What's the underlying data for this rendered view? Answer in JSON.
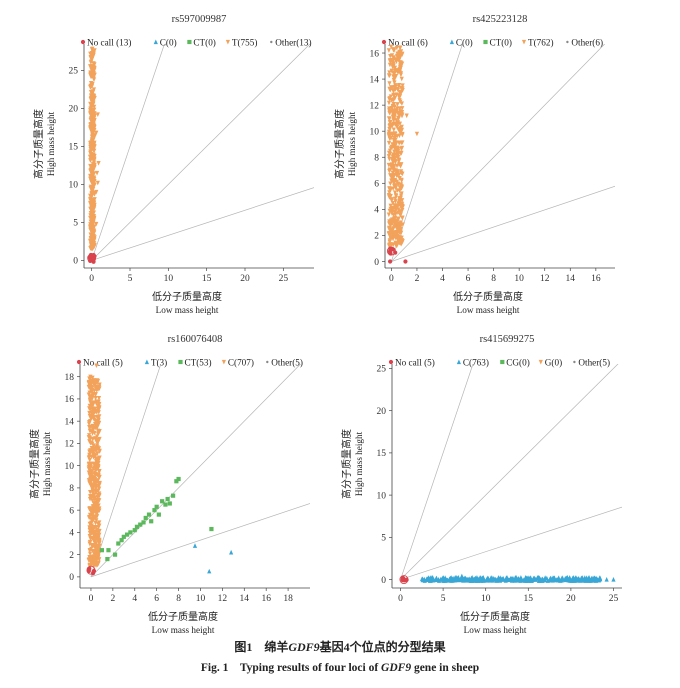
{
  "caption": {
    "zh_prefix": "图1　绵羊",
    "gene": "GDF9",
    "zh_suffix": "基因4个位点的分型结果",
    "en_prefix": "Fig. 1　Typing results of four loci of ",
    "en_suffix": " gene in sheep"
  },
  "colors": {
    "nocall": "#d9434c",
    "blue": "#39a7d6",
    "green": "#5cb85c",
    "orange": "#f2a25a",
    "guide": "#b5b5b5",
    "axis": "#444444"
  },
  "chart_data": [
    {
      "type": "scatter",
      "title": "rs597009987",
      "xlabel_zh": "低分子质量高度",
      "xlabel_en": "Low mass height",
      "ylabel_zh": "高分子质量高度",
      "ylabel_en": "High mass height",
      "xlim": [
        -1,
        29
      ],
      "ylim": [
        -1,
        29
      ],
      "xticks": [
        0,
        5,
        10,
        15,
        20,
        25
      ],
      "yticks": [
        0,
        5,
        10,
        15,
        20,
        25
      ],
      "guide_slopes": [
        3,
        1,
        0.33
      ],
      "legend": [
        {
          "label": "No call (13)",
          "marker": "circle",
          "color": "#d9434c"
        },
        {
          "label": "C(0)",
          "marker": "triangle",
          "color": "#39a7d6"
        },
        {
          "label": "CT(0)",
          "marker": "square",
          "color": "#5cb85c"
        },
        {
          "label": "T(755)",
          "marker": "triangle-down",
          "color": "#f2a25a"
        },
        {
          "label": "Other(13)",
          "marker": "dot",
          "color": "#888888"
        }
      ],
      "clusters": [
        {
          "name": "T",
          "marker": "triangle-down",
          "color": "#f2a25a",
          "n": 420,
          "x": [
            -0.2,
            0.4
          ],
          "y": [
            1.5,
            28
          ]
        },
        {
          "name": "No call",
          "marker": "circle",
          "color": "#d9434c",
          "n": 13,
          "x": [
            -0.3,
            0.4
          ],
          "y": [
            -0.2,
            0.8
          ]
        }
      ],
      "points": [
        {
          "x": 0.8,
          "y": 19.2,
          "marker": "triangle-down",
          "color": "#f2a25a"
        },
        {
          "x": 0.6,
          "y": 16.8,
          "marker": "triangle-down",
          "color": "#f2a25a"
        },
        {
          "x": 0.9,
          "y": 12.8,
          "marker": "triangle-down",
          "color": "#f2a25a"
        },
        {
          "x": 0.7,
          "y": 11.5,
          "marker": "triangle-down",
          "color": "#f2a25a"
        },
        {
          "x": 0.8,
          "y": 10.2,
          "marker": "triangle-down",
          "color": "#f2a25a"
        },
        {
          "x": 0.6,
          "y": 9.0,
          "marker": "triangle-down",
          "color": "#f2a25a"
        },
        {
          "x": 0.6,
          "y": 4.8,
          "marker": "triangle-down",
          "color": "#f2a25a"
        }
      ],
      "highlight": {
        "x": 0,
        "y": 0.3
      }
    },
    {
      "type": "scatter",
      "title": "rs425223128",
      "xlabel_zh": "低分子质量高度",
      "xlabel_en": "Low mass height",
      "ylabel_zh": "高分子质量高度",
      "ylabel_en": "High mass height",
      "xlim": [
        -0.5,
        17.5
      ],
      "ylim": [
        -0.5,
        17
      ],
      "xticks": [
        0,
        2,
        4,
        6,
        8,
        10,
        12,
        14,
        16
      ],
      "yticks": [
        0,
        2,
        4,
        6,
        8,
        10,
        12,
        14,
        16
      ],
      "guide_slopes": [
        3,
        1,
        0.33
      ],
      "legend": [
        {
          "label": "No call (6)",
          "marker": "circle",
          "color": "#d9434c"
        },
        {
          "label": "C(0)",
          "marker": "triangle",
          "color": "#39a7d6"
        },
        {
          "label": "CT(0)",
          "marker": "square",
          "color": "#5cb85c"
        },
        {
          "label": "T(762)",
          "marker": "triangle-down",
          "color": "#f2a25a"
        },
        {
          "label": "Other(6)",
          "marker": "dot",
          "color": "#888888"
        }
      ],
      "clusters": [
        {
          "name": "T",
          "marker": "triangle-down",
          "color": "#f2a25a",
          "n": 520,
          "x": [
            -0.2,
            0.9
          ],
          "y": [
            1.2,
            16.5
          ]
        },
        {
          "name": "No call",
          "marker": "circle",
          "color": "#d9434c",
          "n": 6,
          "x": [
            -0.2,
            0.3
          ],
          "y": [
            0.5,
            1.0
          ]
        }
      ],
      "points": [
        {
          "x": 2.0,
          "y": 9.8,
          "marker": "triangle-down",
          "color": "#f2a25a"
        },
        {
          "x": 1.2,
          "y": 11.2,
          "marker": "triangle-down",
          "color": "#f2a25a"
        },
        {
          "x": 1.1,
          "y": 0.0,
          "marker": "circle",
          "color": "#d9434c"
        },
        {
          "x": -0.1,
          "y": 0.0,
          "marker": "circle",
          "color": "#d9434c"
        }
      ],
      "highlight": {
        "x": 0,
        "y": 0.8
      }
    },
    {
      "type": "scatter",
      "title": "rs160076408",
      "xlabel_zh": "低分子质量高度",
      "xlabel_en": "Low mass height",
      "ylabel_zh": "高分子质量高度",
      "ylabel_en": "High mass height",
      "xlim": [
        -1,
        20
      ],
      "ylim": [
        -1,
        19.5
      ],
      "xticks": [
        0,
        2,
        4,
        6,
        8,
        10,
        12,
        14,
        16,
        18
      ],
      "yticks": [
        0,
        2,
        4,
        6,
        8,
        10,
        12,
        14,
        16,
        18
      ],
      "guide_slopes": [
        3,
        1,
        0.33
      ],
      "legend": [
        {
          "label": "No call (5)",
          "marker": "circle",
          "color": "#d9434c"
        },
        {
          "label": "T(3)",
          "marker": "triangle",
          "color": "#39a7d6"
        },
        {
          "label": "CT(53)",
          "marker": "square",
          "color": "#5cb85c"
        },
        {
          "label": "C(707)",
          "marker": "triangle-down",
          "color": "#f2a25a"
        },
        {
          "label": "Other(5)",
          "marker": "dot",
          "color": "#888888"
        }
      ],
      "clusters": [
        {
          "name": "C",
          "marker": "triangle-down",
          "color": "#f2a25a",
          "n": 520,
          "x": [
            -0.2,
            0.8
          ],
          "y": [
            1.0,
            18.0
          ]
        },
        {
          "name": "No call",
          "marker": "circle",
          "color": "#d9434c",
          "n": 5,
          "x": [
            -0.2,
            0.3
          ],
          "y": [
            0.2,
            0.9
          ]
        }
      ],
      "points": [
        {
          "x": 0.5,
          "y": 19.0,
          "marker": "triangle-down",
          "color": "#f2a25a"
        },
        {
          "x": 1.0,
          "y": 2.4,
          "marker": "square",
          "color": "#5cb85c"
        },
        {
          "x": 1.5,
          "y": 1.6,
          "marker": "square",
          "color": "#5cb85c"
        },
        {
          "x": 1.6,
          "y": 2.4,
          "marker": "square",
          "color": "#5cb85c"
        },
        {
          "x": 2.2,
          "y": 2.0,
          "marker": "square",
          "color": "#5cb85c"
        },
        {
          "x": 2.5,
          "y": 3.0,
          "marker": "square",
          "color": "#5cb85c"
        },
        {
          "x": 2.8,
          "y": 3.3,
          "marker": "square",
          "color": "#5cb85c"
        },
        {
          "x": 3.0,
          "y": 3.6,
          "marker": "square",
          "color": "#5cb85c"
        },
        {
          "x": 3.3,
          "y": 3.8,
          "marker": "square",
          "color": "#5cb85c"
        },
        {
          "x": 3.6,
          "y": 4.0,
          "marker": "square",
          "color": "#5cb85c"
        },
        {
          "x": 4.0,
          "y": 4.2,
          "marker": "square",
          "color": "#5cb85c"
        },
        {
          "x": 4.2,
          "y": 4.5,
          "marker": "square",
          "color": "#5cb85c"
        },
        {
          "x": 4.5,
          "y": 4.7,
          "marker": "square",
          "color": "#5cb85c"
        },
        {
          "x": 4.8,
          "y": 4.9,
          "marker": "square",
          "color": "#5cb85c"
        },
        {
          "x": 5.0,
          "y": 5.3,
          "marker": "square",
          "color": "#5cb85c"
        },
        {
          "x": 5.3,
          "y": 5.6,
          "marker": "square",
          "color": "#5cb85c"
        },
        {
          "x": 5.5,
          "y": 5.0,
          "marker": "square",
          "color": "#5cb85c"
        },
        {
          "x": 5.8,
          "y": 6.0,
          "marker": "square",
          "color": "#5cb85c"
        },
        {
          "x": 6.0,
          "y": 6.3,
          "marker": "square",
          "color": "#5cb85c"
        },
        {
          "x": 6.2,
          "y": 5.6,
          "marker": "square",
          "color": "#5cb85c"
        },
        {
          "x": 6.5,
          "y": 6.8,
          "marker": "square",
          "color": "#5cb85c"
        },
        {
          "x": 6.8,
          "y": 6.5,
          "marker": "square",
          "color": "#5cb85c"
        },
        {
          "x": 7.0,
          "y": 7.0,
          "marker": "square",
          "color": "#5cb85c"
        },
        {
          "x": 7.2,
          "y": 6.6,
          "marker": "square",
          "color": "#5cb85c"
        },
        {
          "x": 7.5,
          "y": 7.3,
          "marker": "square",
          "color": "#5cb85c"
        },
        {
          "x": 7.8,
          "y": 8.6,
          "marker": "square",
          "color": "#5cb85c"
        },
        {
          "x": 8.0,
          "y": 8.8,
          "marker": "square",
          "color": "#5cb85c"
        },
        {
          "x": 11.0,
          "y": 4.3,
          "marker": "square",
          "color": "#5cb85c"
        },
        {
          "x": 9.5,
          "y": 2.8,
          "marker": "triangle",
          "color": "#39a7d6"
        },
        {
          "x": 10.8,
          "y": 0.5,
          "marker": "triangle",
          "color": "#39a7d6"
        },
        {
          "x": 12.8,
          "y": 2.2,
          "marker": "triangle",
          "color": "#39a7d6"
        }
      ],
      "highlight": {
        "x": 0,
        "y": 0.6
      }
    },
    {
      "type": "scatter",
      "title": "rs415699275",
      "xlabel_zh": "低分子质量高度",
      "xlabel_en": "Low mass height",
      "ylabel_zh": "高分子质量高度",
      "ylabel_en": "High mass height",
      "xlim": [
        -1,
        26
      ],
      "ylim": [
        -1,
        26
      ],
      "xticks": [
        0,
        5,
        10,
        15,
        20,
        25
      ],
      "yticks": [
        0,
        5,
        10,
        15,
        20,
        25
      ],
      "guide_slopes": [
        3,
        1,
        0.33
      ],
      "legend": [
        {
          "label": "No call (5)",
          "marker": "circle",
          "color": "#d9434c"
        },
        {
          "label": "C(763)",
          "marker": "triangle",
          "color": "#39a7d6"
        },
        {
          "label": "CG(0)",
          "marker": "square",
          "color": "#5cb85c"
        },
        {
          "label": "G(0)",
          "marker": "triangle-down",
          "color": "#f2a25a"
        },
        {
          "label": "Other(5)",
          "marker": "dot",
          "color": "#888888"
        }
      ],
      "clusters": [
        {
          "name": "C",
          "marker": "triangle",
          "color": "#39a7d6",
          "n": 400,
          "x": [
            2.5,
            23.5
          ],
          "y": [
            -0.15,
            0.25
          ]
        },
        {
          "name": "No call",
          "marker": "circle",
          "color": "#d9434c",
          "n": 5,
          "x": [
            0.0,
            0.8
          ],
          "y": [
            -0.1,
            0.2
          ]
        }
      ],
      "points": [
        {
          "x": 7.2,
          "y": 0.4,
          "marker": "triangle",
          "color": "#39a7d6"
        },
        {
          "x": 24.2,
          "y": 0.0,
          "marker": "triangle",
          "color": "#39a7d6"
        },
        {
          "x": 25.0,
          "y": 0.0,
          "marker": "triangle",
          "color": "#39a7d6"
        }
      ],
      "highlight": {
        "x": 0.4,
        "y": 0.0
      }
    }
  ]
}
